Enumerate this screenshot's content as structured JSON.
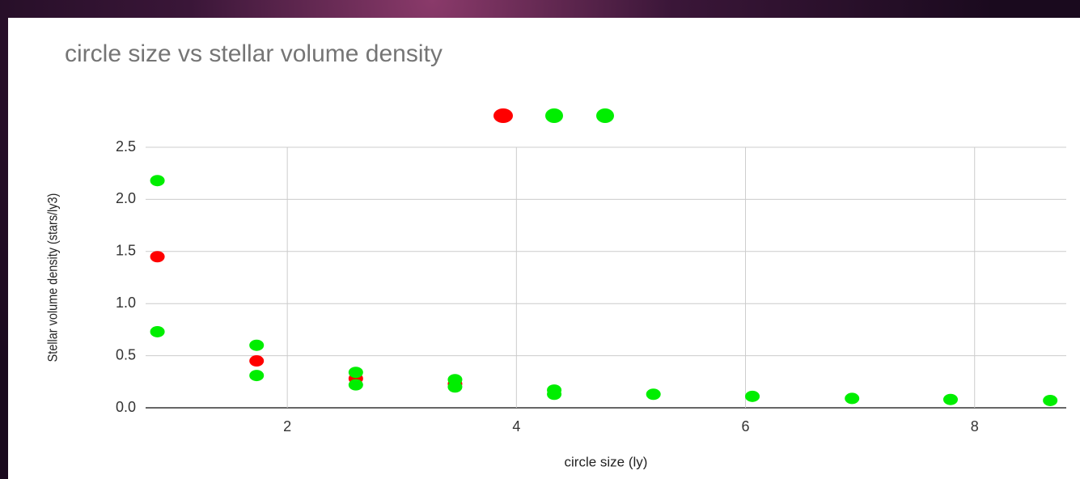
{
  "chart_data": {
    "type": "scatter",
    "title": "circle size vs stellar volume density",
    "xlabel": "circle size (ly)",
    "ylabel": "Stellar volume density  (stars/ly3)",
    "series": [
      {
        "color": "#ff0000",
        "x": [
          0.866,
          1.732,
          2.598,
          3.464
        ],
        "values": [
          1.45,
          0.45,
          0.28,
          0.23
        ]
      },
      {
        "color": "#00ee00",
        "x": [
          0.866,
          1.732,
          2.598,
          3.464,
          4.33,
          5.196,
          6.06,
          6.93,
          7.79,
          8.66
        ],
        "values": [
          2.18,
          0.6,
          0.34,
          0.27,
          0.17,
          0.13,
          0.11,
          0.09,
          0.08,
          0.07
        ]
      },
      {
        "color": "#00ee00",
        "x": [
          0.866,
          1.732,
          2.598,
          3.464,
          4.33
        ],
        "values": [
          0.73,
          0.31,
          0.22,
          0.2,
          0.13
        ]
      }
    ],
    "xlim": [
      0.763,
      8.8
    ],
    "xticks": [
      2,
      4,
      6,
      8
    ],
    "ylim": [
      0,
      2.5
    ],
    "yticks": [
      {
        "value": 0,
        "label": "0.0"
      },
      0.5,
      {
        "value": 1,
        "label": "1.0"
      },
      1.5,
      {
        "value": 2,
        "label": "2.0"
      },
      2.5
    ],
    "grid": true
  }
}
